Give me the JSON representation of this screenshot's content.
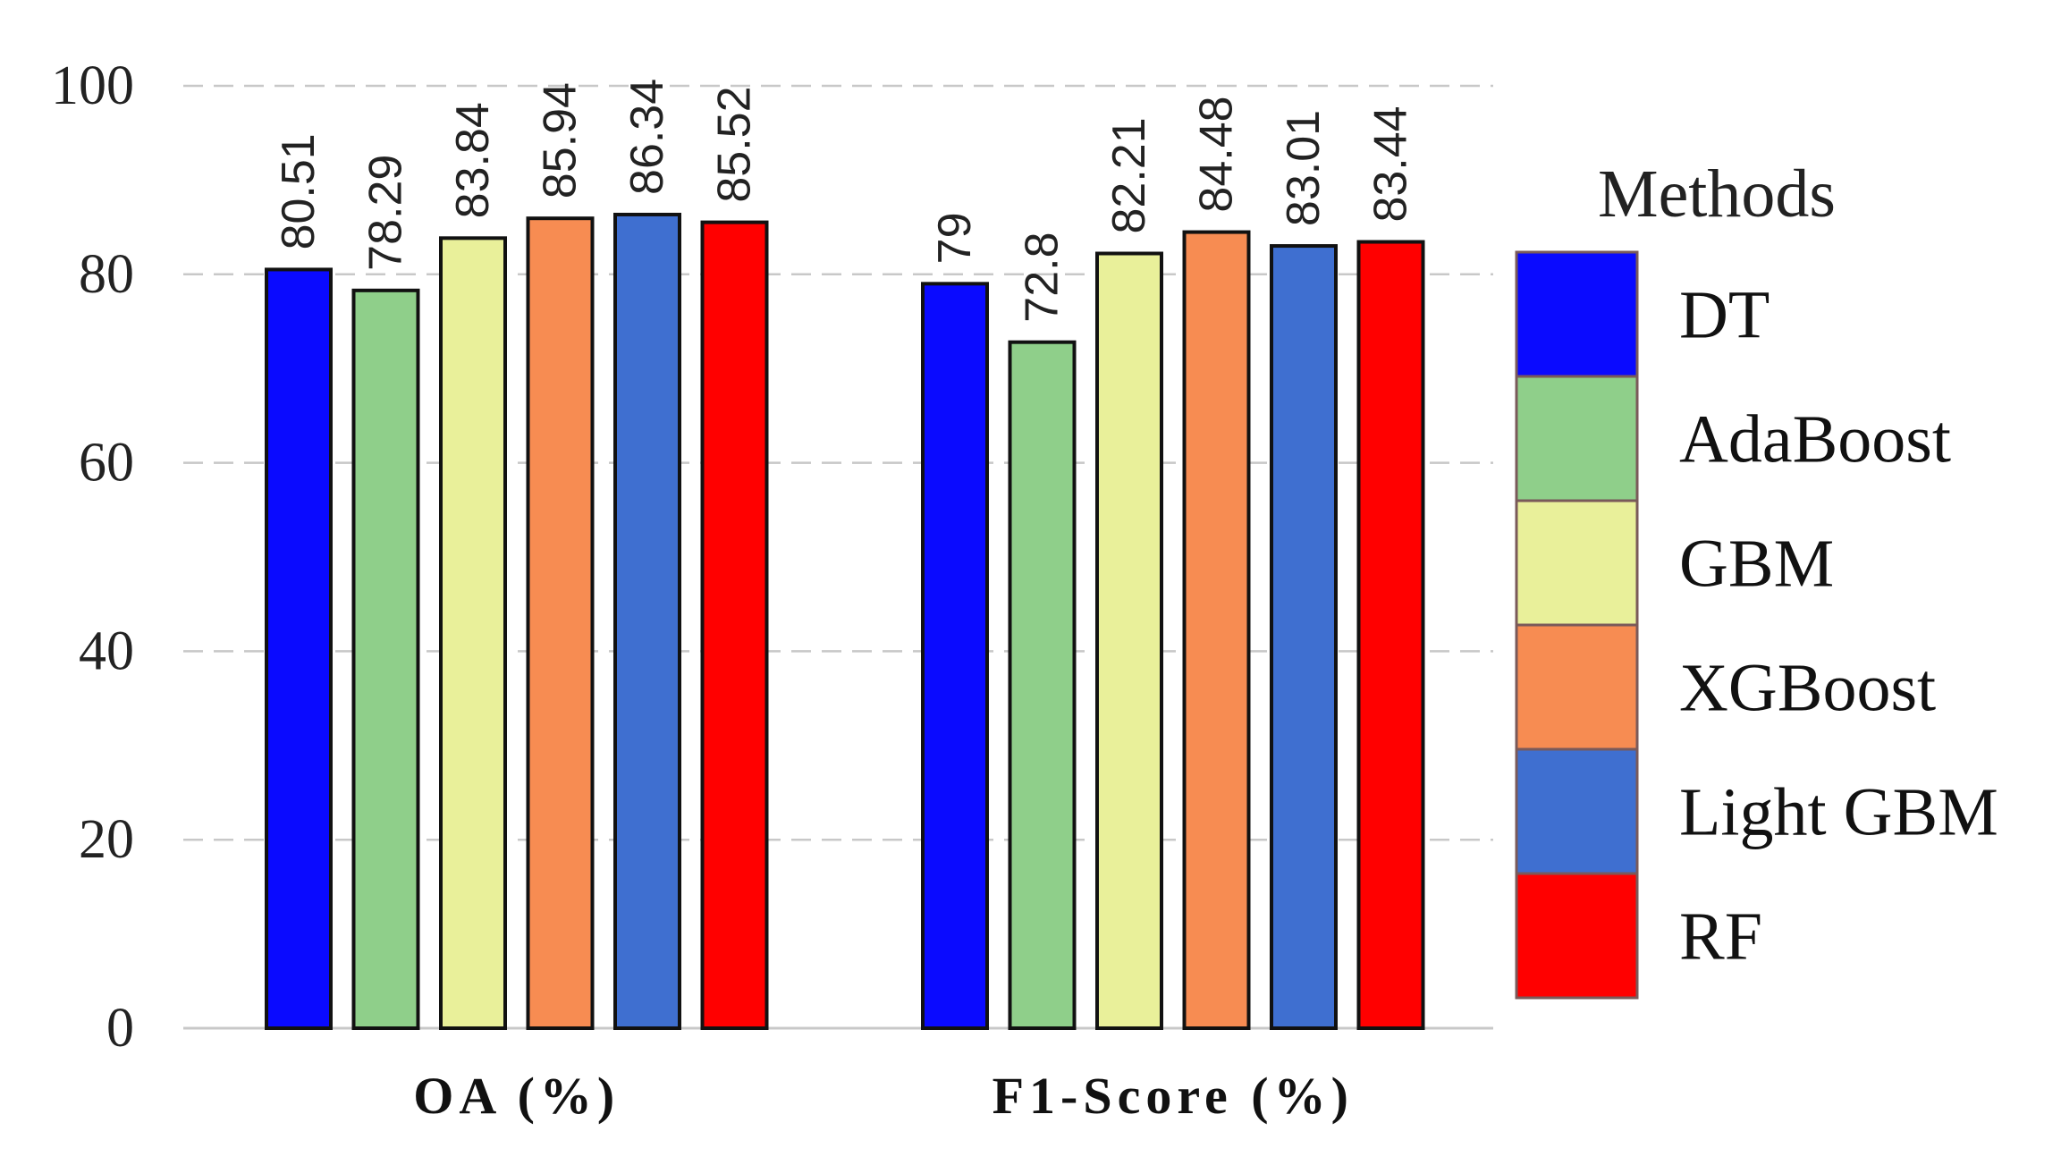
{
  "chart_data": {
    "type": "bar",
    "title": "",
    "xlabel": "",
    "ylabel": "",
    "categories": [
      "OA (%)",
      "F1-Score (%)"
    ],
    "ylim": [
      0,
      100
    ],
    "yticks": [
      0,
      20,
      40,
      60,
      80,
      100
    ],
    "grid": "horizontal dashed",
    "legend": {
      "title": "Methods",
      "placement": "right"
    },
    "series": [
      {
        "name": "DT",
        "color": "#0a0aff",
        "values": [
          80.51,
          79
        ],
        "labels": [
          "80.51",
          "79"
        ]
      },
      {
        "name": "AdaBoost",
        "color": "#8fcf8a",
        "values": [
          78.29,
          72.8
        ],
        "labels": [
          "78.29",
          "72.8"
        ]
      },
      {
        "name": "GBM",
        "color": "#e9f09a",
        "values": [
          83.84,
          82.21
        ],
        "labels": [
          "83.84",
          "82.21"
        ]
      },
      {
        "name": "XGBoost",
        "color": "#f78c52",
        "values": [
          85.94,
          84.48
        ],
        "labels": [
          "85.94",
          "84.48"
        ]
      },
      {
        "name": "Light GBM",
        "color": "#3f6fd0",
        "values": [
          86.34,
          83.01
        ],
        "labels": [
          "86.34",
          "83.01"
        ]
      },
      {
        "name": "RF",
        "color": "#ff0000",
        "values": [
          85.52,
          83.44
        ],
        "labels": [
          "85.52",
          "83.44"
        ]
      }
    ]
  }
}
